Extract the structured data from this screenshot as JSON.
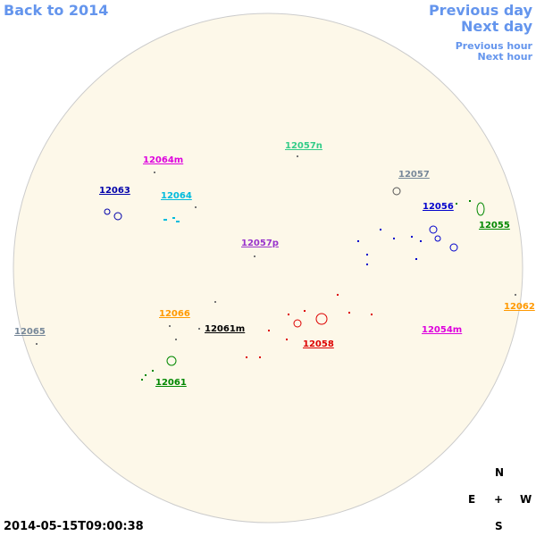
{
  "navigation": {
    "back": "Back to 2014",
    "previous_day": "Previous day",
    "next_day": "Next day",
    "previous_hour": "Previous hour",
    "next_hour": "Next hour"
  },
  "regions": [
    {
      "label": "12057n",
      "color": "#33cc88"
    },
    {
      "label": "12064m",
      "color": "#dd00dd"
    },
    {
      "label": "12063",
      "color": "#0000aa"
    },
    {
      "label": "12064",
      "color": "#00bbdd"
    },
    {
      "label": "12057",
      "color": "#778899"
    },
    {
      "label": "12056",
      "color": "#0000cc"
    },
    {
      "label": "12055",
      "color": "#008800"
    },
    {
      "label": "12057p",
      "color": "#9933cc"
    },
    {
      "label": "12066",
      "color": "#ff9900"
    },
    {
      "label": "12061m",
      "color": "#000000"
    },
    {
      "label": "12062",
      "color": "#ff9900"
    },
    {
      "label": "12065",
      "color": "#778899"
    },
    {
      "label": "12058",
      "color": "#dd0000"
    },
    {
      "label": "12054m",
      "color": "#dd00dd"
    },
    {
      "label": "12061",
      "color": "#008800"
    }
  ],
  "timestamp": "2014-05-15T09:00:38",
  "compass": {
    "north": "N",
    "east": "E",
    "center": "+",
    "west": "W",
    "south": "S"
  }
}
